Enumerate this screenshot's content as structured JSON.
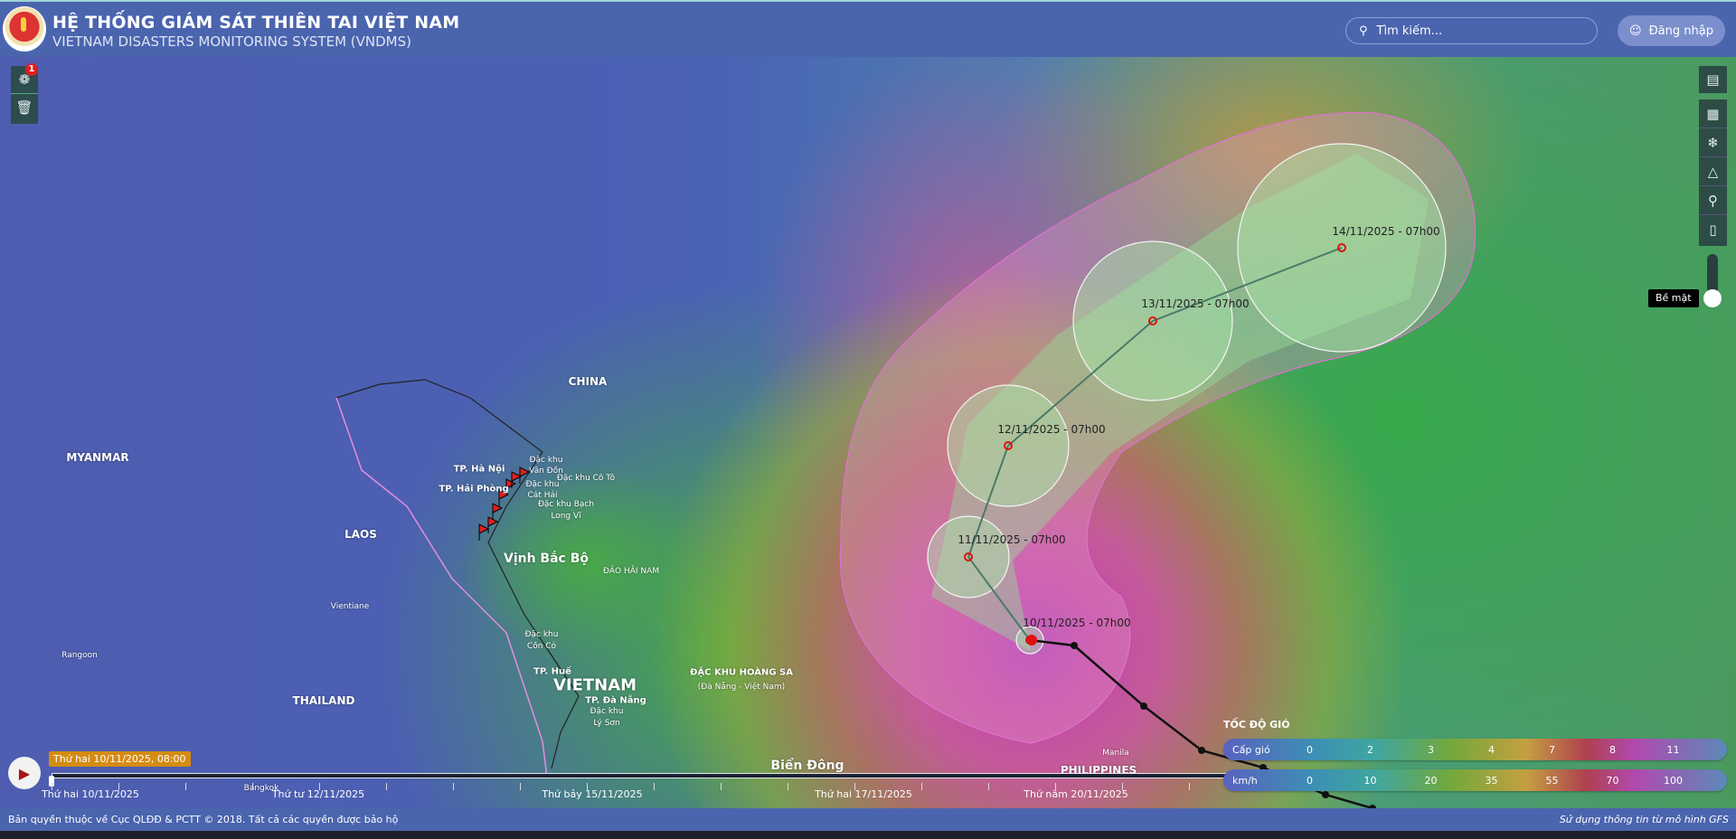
{
  "header": {
    "title": "HỆ THỐNG GIÁM SÁT THIÊN TAI VIỆT NAM",
    "subtitle": "VIETNAM DISASTERS MONITORING SYSTEM (VNDMS)",
    "search_placeholder": "Tìm kiếm...",
    "login_label": "Đăng nhập"
  },
  "left_tools": {
    "badge": "1",
    "items": [
      "storm-icon",
      "trash-icon"
    ]
  },
  "right_tools": {
    "items": [
      "map-book-icon",
      "map-pin-icon",
      "network-icon",
      "hierarchy-icon",
      "zoom-search-icon",
      "book-icon"
    ],
    "layer_label": "Bề mặt"
  },
  "map_labels": [
    "CHINA",
    "MYANMAR",
    "LAOS",
    "Vientiane",
    "Rangoon",
    "THAILAND",
    "VIETNAM",
    "Bangkok",
    "Biển Đông",
    "Manila",
    "PHILIPPINES",
    "ĐẶC KHU HOÀNG SA",
    "(Đà Nẵng - Việt Nam)",
    "Vịnh Bắc Bộ",
    "ĐẢO HẢI NAM",
    "TP. Hà Nội",
    "TP. Hải Phòng",
    "Đặc khu",
    "Vân Đồn",
    "Đặc khu Cô Tô",
    "Đặc khu",
    "Cát Hải",
    "Đặc khu Bạch",
    "Long Vĩ",
    "Đặc khu",
    "Cồn Cỏ",
    "TP. Huế",
    "TP. Đà Nẵng",
    "Đặc khu",
    "Lý Sơn"
  ],
  "storm": {
    "forecasts": [
      "10/11/2025 - 07h00",
      "11/11/2025 - 07h00",
      "12/11/2025 - 07h00",
      "13/11/2025 - 07h00",
      "14/11/2025 - 07h00"
    ],
    "cone_color": "#e070d0",
    "point_color": "#e01010"
  },
  "timeline": {
    "tooltip": "Thứ hai 10/11/2025, 08:00",
    "dates": [
      "Thứ hai 10/11/2025",
      "Thứ tư 12/11/2025",
      "Thứ bảy 15/11/2025",
      "Thứ hai 17/11/2025",
      "Thứ năm 20/11/2025"
    ],
    "progress": 0
  },
  "legend": {
    "title": "TỐC ĐỘ GIÓ",
    "rows": [
      {
        "label": "Cấp gió",
        "values": [
          "0",
          "2",
          "3",
          "4",
          "7",
          "8",
          "11"
        ]
      },
      {
        "label": "km/h",
        "values": [
          "0",
          "10",
          "20",
          "35",
          "55",
          "70",
          "100"
        ]
      }
    ]
  },
  "footer": {
    "copyright": "Bản quyền thuộc về Cục QLĐĐ & PCTT © 2018. Tất cả các quyền được bảo hộ",
    "source": "Sử dụng thông tin từ mô hình GFS"
  }
}
